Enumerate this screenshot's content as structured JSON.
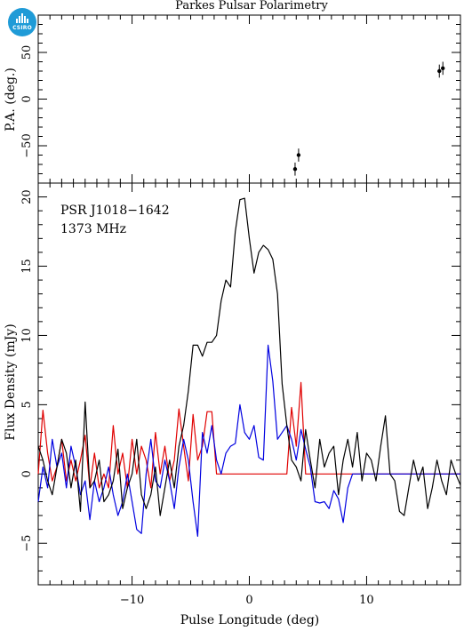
{
  "logo": {
    "text": "CSIRO",
    "icon": "csiro-logo-icon",
    "color": "#1f9bd7"
  },
  "chart_data": [
    {
      "type": "scatter",
      "title": "Parkes Pulsar Polarimetry",
      "ylabel": "P.A. (deg.)",
      "xlim": [
        -18,
        18
      ],
      "ylim": [
        -90,
        90
      ],
      "yticks": [
        -50,
        0,
        50
      ],
      "points": [
        {
          "x": 3.9,
          "y": -75,
          "err": 7
        },
        {
          "x": 4.2,
          "y": -60,
          "err": 7
        },
        {
          "x": 16.2,
          "y": 30,
          "err": 7
        },
        {
          "x": 16.5,
          "y": 33,
          "err": 7
        }
      ]
    },
    {
      "type": "line",
      "xlabel": "Pulse Longitude (deg)",
      "ylabel": "Flux Density (mJy)",
      "annotation": [
        "PSR J1018−1642",
        "1373 MHz"
      ],
      "xlim": [
        -18,
        18
      ],
      "ylim": [
        -8,
        21
      ],
      "xticks": [
        -10,
        0,
        10
      ],
      "yticks": [
        -5,
        0,
        5,
        10,
        15,
        20
      ],
      "x": [
        -18.0,
        -17.6,
        -17.2,
        -16.8,
        -16.4,
        -16.0,
        -15.6,
        -15.2,
        -14.8,
        -14.4,
        -14.0,
        -13.6,
        -13.2,
        -12.8,
        -12.4,
        -12.0,
        -11.6,
        -11.2,
        -10.8,
        -10.4,
        -10.0,
        -9.6,
        -9.2,
        -8.8,
        -8.4,
        -8.0,
        -7.6,
        -7.2,
        -6.8,
        -6.4,
        -6.0,
        -5.6,
        -5.2,
        -4.8,
        -4.4,
        -4.0,
        -3.6,
        -3.2,
        -2.8,
        -2.4,
        -2.0,
        -1.6,
        -1.2,
        -0.8,
        -0.4,
        0.0,
        0.4,
        0.8,
        1.2,
        1.6,
        2.0,
        2.4,
        2.8,
        3.2,
        3.6,
        4.0,
        4.4,
        4.8,
        5.2,
        5.6,
        6.0,
        6.4,
        6.8,
        7.2,
        7.6,
        8.0,
        8.4,
        8.8,
        9.2,
        9.6,
        10.0,
        10.4,
        10.8,
        11.2,
        11.6,
        12.0,
        12.4,
        12.8,
        13.2,
        13.6,
        14.0,
        14.4,
        14.8,
        15.2,
        15.6,
        16.0,
        16.4,
        16.8,
        17.2,
        17.6,
        18.0
      ],
      "series": [
        {
          "color": "#000000",
          "values": [
            2.0,
            1.0,
            -0.5,
            -1.5,
            0.5,
            2.5,
            1.5,
            -1.0,
            1.0,
            -2.7,
            5.2,
            -1.0,
            -0.5,
            1.0,
            -2.0,
            -1.5,
            -0.5,
            1.8,
            -2.5,
            -1.0,
            0.0,
            2.5,
            -1.5,
            -2.5,
            -1.5,
            0.5,
            -3.0,
            -1.0,
            1.0,
            -1.0,
            2.0,
            3.5,
            6.0,
            9.3,
            9.3,
            8.5,
            9.5,
            9.5,
            10.0,
            12.5,
            14.0,
            13.5,
            17.5,
            19.8,
            19.9,
            17.0,
            14.5,
            16.0,
            16.5,
            16.2,
            15.5,
            13.0,
            6.5,
            3.5,
            1.0,
            0.5,
            -0.5,
            3.2,
            1.0,
            -1.0,
            2.5,
            0.5,
            1.5,
            2.0,
            -1.5,
            1.0,
            2.5,
            0.5,
            3.0,
            -0.5,
            1.5,
            1.0,
            -0.5,
            2.0,
            4.2,
            0.0,
            -0.5,
            -2.7,
            -3.0,
            -1.0,
            1.0,
            -0.5,
            0.5,
            -2.5,
            -1.0,
            1.0,
            -0.5,
            -1.5,
            1.0,
            0.0,
            -0.8
          ]
        },
        {
          "color": "#e00000",
          "values": [
            0.0,
            4.6,
            1.5,
            -0.5,
            0.5,
            2.5,
            -0.5,
            1.0,
            -0.5,
            1.0,
            2.8,
            -1.0,
            1.5,
            -1.0,
            0.0,
            -1.0,
            3.5,
            0.0,
            1.5,
            -1.0,
            2.5,
            0.0,
            2.0,
            1.0,
            -1.0,
            3.0,
            0.0,
            2.0,
            -0.5,
            1.0,
            4.7,
            2.0,
            -0.5,
            4.3,
            1.0,
            2.0,
            4.5,
            4.5,
            0.0,
            0.0,
            0.0,
            0.0,
            0.0,
            0.0,
            0.0,
            0.0,
            0.0,
            0.0,
            0.0,
            0.0,
            0.0,
            0.0,
            0.0,
            0.0,
            4.8,
            2.0,
            6.6,
            0.0,
            0.0,
            0.0,
            0.0,
            0.0,
            0.0,
            0.0,
            0.0,
            0.0,
            0.0,
            0.0,
            0.0,
            0.0,
            0.0,
            0.0,
            0.0,
            0.0,
            0.0,
            0.0,
            0.0,
            0.0,
            0.0,
            0.0,
            0.0,
            0.0,
            0.0,
            0.0,
            0.0,
            0.0,
            0.0,
            0.0,
            0.0,
            0.0,
            0.0
          ]
        },
        {
          "color": "#0000e0",
          "values": [
            -2.0,
            0.5,
            -1.0,
            2.5,
            0.5,
            1.5,
            -1.0,
            2.0,
            0.5,
            -1.5,
            -0.5,
            -3.3,
            -0.5,
            -2.0,
            -1.0,
            0.5,
            -1.5,
            -3.0,
            -2.0,
            0.0,
            -2.0,
            -4.0,
            -4.3,
            0.0,
            2.5,
            -0.5,
            -1.0,
            1.0,
            -0.5,
            -2.5,
            0.5,
            2.5,
            1.0,
            -2.0,
            -4.5,
            3.0,
            1.5,
            3.5,
            1.0,
            0.0,
            1.5,
            2.0,
            2.2,
            5.0,
            3.0,
            2.5,
            3.5,
            1.2,
            1.0,
            9.3,
            6.7,
            2.5,
            3.0,
            3.5,
            2.5,
            1.0,
            3.2,
            1.8,
            0.5,
            -2.0,
            -2.1,
            -2.0,
            -2.5,
            -1.2,
            -1.8,
            -3.5,
            -1.0,
            0.0,
            0.0,
            0.0,
            0.0,
            0.0,
            0.0,
            0.0,
            0.0,
            0.0,
            0.0,
            0.0,
            0.0,
            0.0,
            0.0,
            0.0,
            0.0,
            0.0,
            0.0,
            0.0,
            0.0,
            0.0,
            0.0,
            0.0,
            0.0
          ]
        }
      ]
    }
  ]
}
